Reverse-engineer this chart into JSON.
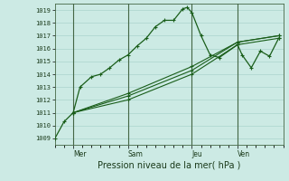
{
  "xlabel": "Pression niveau de la mer( hPa )",
  "background_color": "#cceae4",
  "grid_color": "#aad4cc",
  "line_color": "#1a5e1a",
  "ylim": [
    1008.5,
    1019.5
  ],
  "xlim": [
    0,
    100
  ],
  "day_ticks": [
    {
      "x": 8,
      "label": "Mer"
    },
    {
      "x": 32,
      "label": "Sam"
    },
    {
      "x": 60,
      "label": "Jeu"
    },
    {
      "x": 80,
      "label": "Ven"
    }
  ],
  "day_lines": [
    8,
    32,
    60,
    80
  ],
  "minor_xticks_every": 4,
  "series": [
    {
      "x": [
        0,
        4,
        8,
        11,
        16,
        20,
        24,
        28,
        32,
        36,
        40,
        44,
        48,
        52,
        56,
        58,
        60,
        64,
        68,
        72,
        80,
        82,
        86,
        90,
        94,
        98
      ],
      "y": [
        1009,
        1010.3,
        1011,
        1013,
        1013.8,
        1014.0,
        1014.5,
        1015.1,
        1015.5,
        1016.2,
        1016.8,
        1017.7,
        1018.2,
        1018.2,
        1019.1,
        1019.2,
        1018.8,
        1017.0,
        1015.5,
        1015.3,
        1016.3,
        1015.5,
        1014.5,
        1015.8,
        1015.4,
        1016.8
      ]
    },
    {
      "x": [
        8,
        32,
        60,
        80,
        98
      ],
      "y": [
        1011,
        1012.0,
        1014.0,
        1016.3,
        1016.8
      ]
    },
    {
      "x": [
        8,
        32,
        60,
        80,
        98
      ],
      "y": [
        1011,
        1012.3,
        1014.3,
        1016.5,
        1017.0
      ]
    },
    {
      "x": [
        8,
        32,
        60,
        80,
        98
      ],
      "y": [
        1011,
        1012.5,
        1014.6,
        1016.5,
        1017.0
      ]
    }
  ]
}
